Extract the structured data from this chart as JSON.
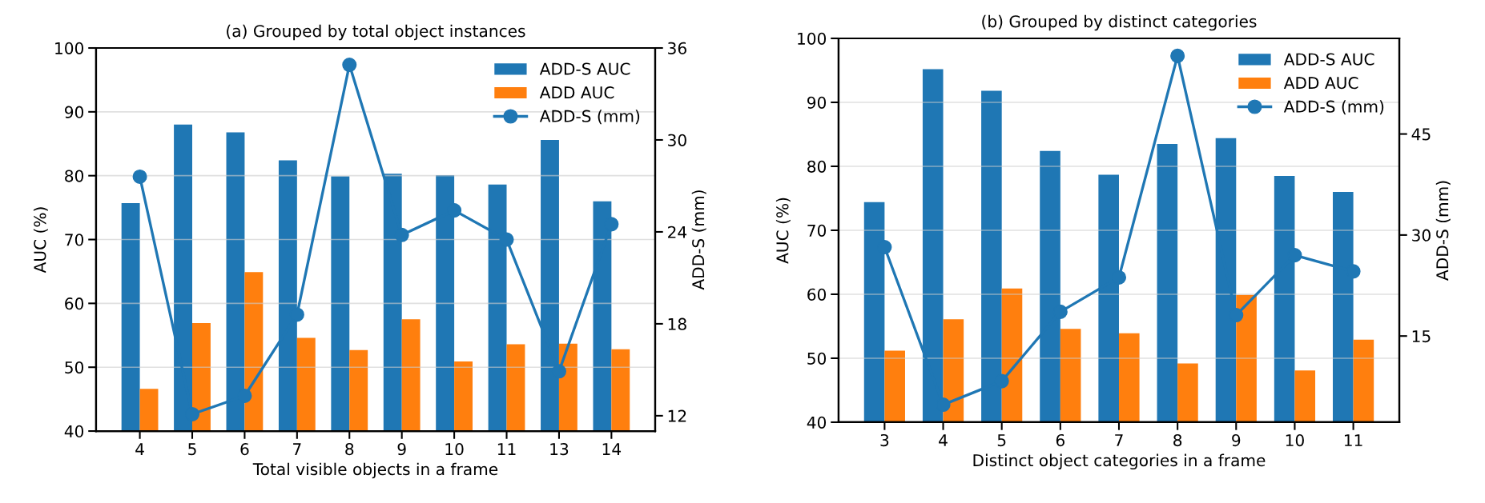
{
  "chart_data": [
    {
      "type": "bar",
      "title": "(a) Grouped by total object instances",
      "xlabel": "Total visible objects in a frame",
      "ylabel": "AUC (%)",
      "y2label": "ADD-S (mm)",
      "categories": [
        "4",
        "5",
        "6",
        "7",
        "8",
        "9",
        "10",
        "11",
        "13",
        "14"
      ],
      "series": [
        {
          "name": "ADD-S AUC",
          "color": "#1f77b4",
          "values": [
            75.7,
            88.0,
            86.8,
            82.4,
            79.9,
            80.3,
            80.1,
            78.6,
            85.6,
            76.0
          ]
        },
        {
          "name": "ADD AUC",
          "color": "#ff7f0e",
          "values": [
            46.6,
            56.9,
            64.9,
            54.6,
            52.7,
            57.5,
            50.9,
            53.6,
            53.7,
            52.8
          ]
        },
        {
          "name": "ADD-S (mm)",
          "color": "#1f77b4",
          "type": "line",
          "axis": "y2",
          "marker": "circle",
          "line_style": "solid",
          "values": [
            27.6,
            12.1,
            13.3,
            18.6,
            34.9,
            23.8,
            25.4,
            23.5,
            14.9,
            24.5
          ]
        }
      ],
      "ylim": [
        40,
        100
      ],
      "yticks": [
        40,
        50,
        60,
        70,
        80,
        90,
        100
      ],
      "y2lim": [
        11,
        36
      ],
      "y2ticks": [
        12,
        18,
        24,
        30,
        36
      ],
      "grid": "y",
      "legend": "top right"
    },
    {
      "type": "bar",
      "title": "(b) Grouped by distinct categories",
      "xlabel": "Distinct object categories in a frame",
      "ylabel": "AUC (%)",
      "y2label": "ADD-S (mm)",
      "categories": [
        "3",
        "4",
        "5",
        "6",
        "7",
        "8",
        "9",
        "10",
        "11"
      ],
      "series": [
        {
          "name": "ADD-S AUC",
          "color": "#1f77b4",
          "values": [
            74.4,
            95.2,
            91.8,
            82.4,
            78.7,
            83.5,
            84.4,
            78.5,
            76.0
          ]
        },
        {
          "name": "ADD AUC",
          "color": "#ff7f0e",
          "values": [
            51.2,
            56.1,
            60.9,
            54.6,
            53.9,
            49.2,
            59.9,
            48.1,
            52.9
          ]
        },
        {
          "name": "ADD-S (mm)",
          "color": "#1f77b4",
          "type": "line",
          "axis": "y2",
          "marker": "circle",
          "line_style": "solid",
          "values": [
            28.2,
            4.8,
            8.3,
            18.6,
            23.7,
            56.6,
            18.1,
            27.0,
            24.6
          ]
        }
      ],
      "ylim": [
        40,
        100
      ],
      "yticks": [
        40,
        50,
        60,
        70,
        80,
        90,
        100
      ],
      "y2lim": [
        2.2,
        59.2
      ],
      "y2ticks": [
        15,
        30,
        45
      ],
      "grid": "y",
      "legend": "top right"
    }
  ]
}
